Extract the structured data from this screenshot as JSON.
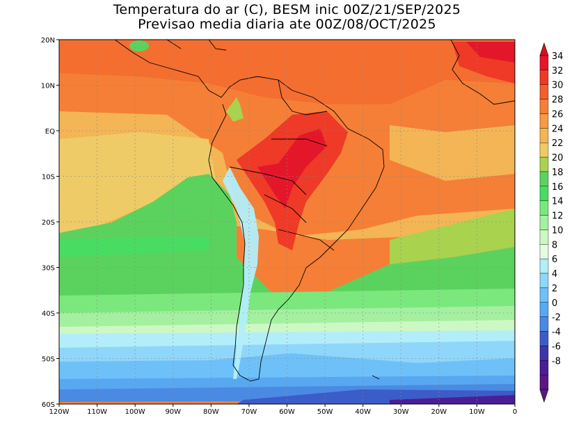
{
  "title_line1": "Temperatura do ar (C), BESM inic 00Z/21/SEP/2025",
  "title_line2": "Previsao media diaria ate 00Z/08/OCT/2025",
  "lat_labels": [
    "20N",
    "10N",
    "EQ",
    "10S",
    "20S",
    "30S",
    "40S",
    "50S",
    "60S"
  ],
  "lon_labels": [
    "120W",
    "110W",
    "100W",
    "90W",
    "80W",
    "70W",
    "60W",
    "50W",
    "40W",
    "30W",
    "20W",
    "10W",
    "0"
  ],
  "colorbar": {
    "labels": [
      "34",
      "32",
      "30",
      "28",
      "26",
      "24",
      "22",
      "20",
      "18",
      "16",
      "14",
      "12",
      "10",
      "8",
      "6",
      "4",
      "2",
      "0",
      "-2",
      "-4",
      "-6",
      "-8"
    ],
    "colors": [
      "#e4172a",
      "#ee3a26",
      "#f3602c",
      "#f57f36",
      "#f59a45",
      "#f3b555",
      "#efcb67",
      "#a9d24f",
      "#5cd25e",
      "#48dc62",
      "#7be87d",
      "#a4f0a0",
      "#cdf8c4",
      "#e6fbe0",
      "#b2eefa",
      "#8fd7fa",
      "#6ec1f8",
      "#57a8f0",
      "#4a8ae3",
      "#3c5cc8",
      "#3d36aa",
      "#4a1f95",
      "#5c1784"
    ],
    "top_arrow_color": "#d9101e",
    "bottom_arrow_color": "#5c1784"
  }
}
